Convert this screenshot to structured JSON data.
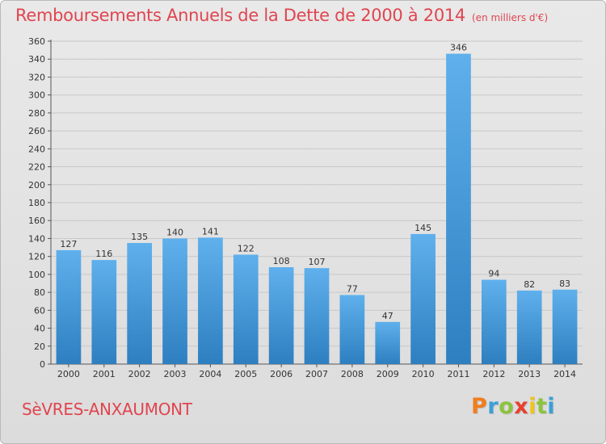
{
  "title": "Remboursements Annuels de la Dette de 2000 à 2014",
  "unit": "(en milliers d'€)",
  "city": "SèVRES-ANXAUMONT",
  "logo": {
    "letters": [
      "P",
      "r",
      "o",
      "x",
      "i",
      "t",
      "i"
    ],
    "colors": [
      "#f07d1e",
      "#3aa0d8",
      "#8cc43c",
      "#e8402f",
      "#f0c41e",
      "#8cc43c",
      "#3aa0d8"
    ]
  },
  "colors": {
    "bar_top": "#5fb0ec",
    "bar_bottom": "#2e7fc0",
    "title": "#e0454f",
    "grid": "#c8c8c8"
  },
  "chart_data": {
    "type": "bar",
    "categories": [
      "2000",
      "2001",
      "2002",
      "2003",
      "2004",
      "2005",
      "2006",
      "2007",
      "2008",
      "2009",
      "2010",
      "2011",
      "2012",
      "2013",
      "2014"
    ],
    "values": [
      127,
      116,
      135,
      140,
      141,
      122,
      108,
      107,
      77,
      47,
      145,
      346,
      94,
      82,
      83
    ],
    "ylim": [
      0,
      360
    ],
    "yticks": [
      0,
      20,
      40,
      60,
      80,
      100,
      120,
      140,
      160,
      180,
      200,
      220,
      240,
      260,
      280,
      300,
      320,
      340,
      360
    ],
    "grid": true,
    "data_labels": true
  }
}
